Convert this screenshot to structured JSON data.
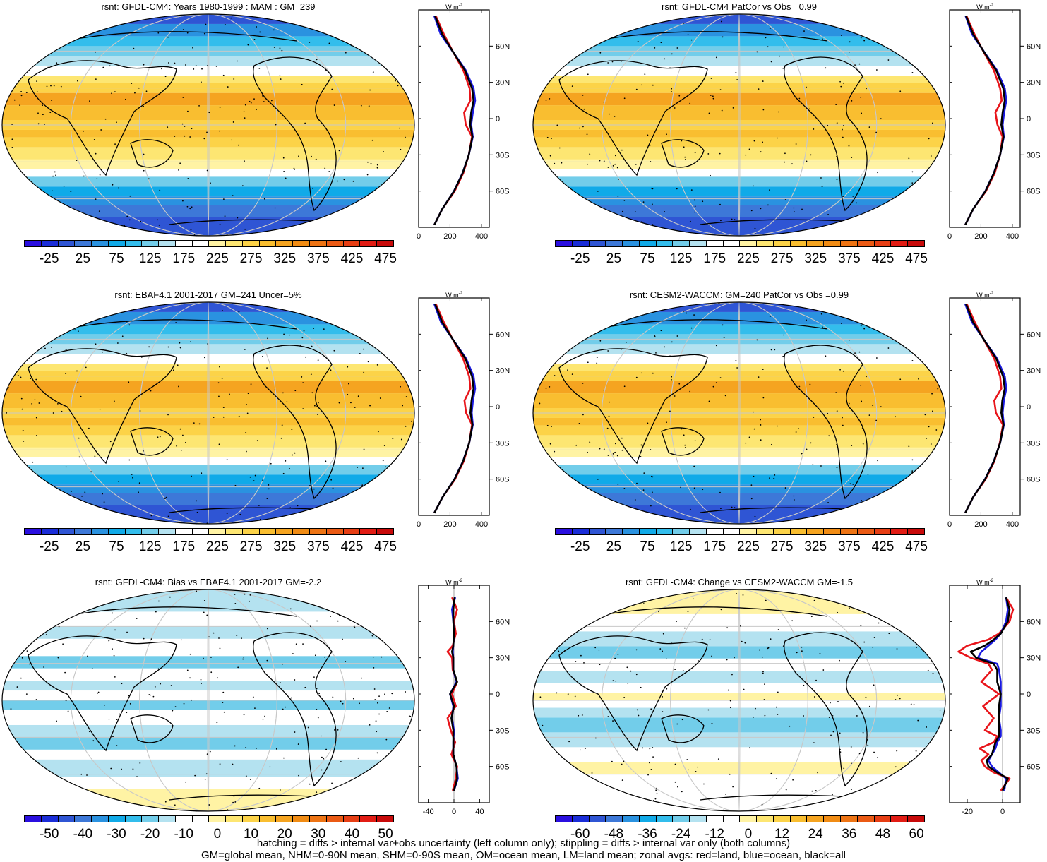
{
  "panels": [
    {
      "id": "p1",
      "title": "rsnt: GFDL-CM4: Years 1980-1999 : MAM : GM=239",
      "kind": "abs",
      "scale": "abs"
    },
    {
      "id": "p2",
      "title": "rsnt: GFDL-CM4 PatCor vs Obs =0.99",
      "kind": "abs",
      "scale": "abs"
    },
    {
      "id": "p3",
      "title": "rsnt: EBAF4.1 2001-2017 GM=241 Uncer=5%",
      "kind": "abs",
      "scale": "abs"
    },
    {
      "id": "p4",
      "title": "rsnt: CESM2-WACCM: GM=240 PatCor vs Obs =0.99",
      "kind": "abs",
      "scale": "abs"
    },
    {
      "id": "p5",
      "title": "rsnt: GFDL-CM4: Bias vs EBAF4.1 2001-2017 GM=-2.2",
      "kind": "bias",
      "scale": "bias"
    },
    {
      "id": "p6",
      "title": "rsnt: GFDL-CM4: Change vs CESM2-WACCM GM=-1.5",
      "kind": "change",
      "scale": "change"
    }
  ],
  "units_label": "W m",
  "units_exp": "-2",
  "lat_labels": [
    "60N",
    "30N",
    "0",
    "30S",
    "60S"
  ],
  "colorbars": {
    "abs": {
      "labels": [
        "-25",
        "25",
        "75",
        "125",
        "175",
        "225",
        "275",
        "325",
        "375",
        "425",
        "475"
      ],
      "colors": [
        "#2a0fe0",
        "#1a2dd8",
        "#2f55d4",
        "#3d78d8",
        "#2a92e0",
        "#10aae8",
        "#33bdec",
        "#72cdea",
        "#b4e2f0",
        "#ffffff",
        "#ffffff",
        "#fff3a4",
        "#fde672",
        "#fcd348",
        "#f9be30",
        "#f5a420",
        "#f18c14",
        "#ee7414",
        "#eb5a14",
        "#e73e14",
        "#e21c14",
        "#c80a0a"
      ]
    },
    "bias": {
      "labels": [
        "-50",
        "-40",
        "-30",
        "-20",
        "-10",
        "0",
        "10",
        "20",
        "30",
        "40",
        "50"
      ],
      "colors": [
        "#2a0fe0",
        "#1a2dd8",
        "#2f55d4",
        "#3d78d8",
        "#2a92e0",
        "#10aae8",
        "#33bdec",
        "#72cdea",
        "#b4e2f0",
        "#ffffff",
        "#ffffff",
        "#fff3a4",
        "#fde672",
        "#fcd348",
        "#f9be30",
        "#f5a420",
        "#f18c14",
        "#ee7414",
        "#eb5a14",
        "#e73e14",
        "#e21c14",
        "#c80a0a"
      ]
    },
    "change": {
      "labels": [
        "-60",
        "-48",
        "-36",
        "-24",
        "-12",
        "0",
        "12",
        "24",
        "36",
        "48",
        "60"
      ],
      "colors": [
        "#2a0fe0",
        "#1a2dd8",
        "#2f55d4",
        "#3d78d8",
        "#2a92e0",
        "#10aae8",
        "#33bdec",
        "#72cdea",
        "#b4e2f0",
        "#ffffff",
        "#ffffff",
        "#fff3a4",
        "#fde672",
        "#fcd348",
        "#f9be30",
        "#f5a420",
        "#f18c14",
        "#ee7414",
        "#eb5a14",
        "#e73e14",
        "#e21c14",
        "#c80a0a"
      ]
    }
  },
  "footer": {
    "line1": "hatching = diffs > internal var+obs uncertainty (left column only); stippling = diffs > internal var only (both columns)",
    "line2": "GM=global mean, NHM=0-90N mean, SHM=0-90S mean, OM=ocean mean, LM=land mean; zonal avgs: red=land, blue=ocean, black=all"
  },
  "chart_data": [
    {
      "type": "line",
      "title": "rsnt: GFDL-CM4: Years 1980-1999 : MAM : GM=239",
      "xlabel": "W m-2",
      "xlim": [
        0,
        450
      ],
      "xticks": [
        "0",
        "200",
        "400"
      ],
      "ylim": [
        -90,
        90
      ],
      "series": [
        {
          "name": "land",
          "color": "#e8141a",
          "lat": [
            -88,
            -75,
            -60,
            -45,
            -30,
            -15,
            -5,
            5,
            15,
            25,
            40,
            55,
            70,
            85
          ],
          "values": [
            100,
            150,
            230,
            285,
            320,
            340,
            300,
            290,
            330,
            325,
            285,
            220,
            160,
            110
          ]
        },
        {
          "name": "ocean",
          "color": "#1a1ae0",
          "lat": [
            -88,
            -75,
            -60,
            -45,
            -30,
            -15,
            -5,
            5,
            15,
            25,
            40,
            55,
            70,
            85
          ],
          "values": [
            100,
            150,
            225,
            280,
            320,
            345,
            335,
            345,
            360,
            350,
            300,
            220,
            140,
            100
          ]
        },
        {
          "name": "all",
          "color": "#000000",
          "lat": [
            -88,
            -75,
            -60,
            -45,
            -30,
            -15,
            -5,
            5,
            15,
            25,
            40,
            55,
            70,
            85
          ],
          "values": [
            100,
            150,
            226,
            281,
            320,
            343,
            328,
            335,
            350,
            340,
            295,
            220,
            150,
            105
          ]
        }
      ]
    },
    {
      "type": "line",
      "title": "rsnt: GFDL-CM4 PatCor vs Obs =0.99",
      "xlabel": "W m-2",
      "xlim": [
        0,
        450
      ],
      "xticks": [
        "0",
        "200",
        "400"
      ],
      "ylim": [
        -90,
        90
      ],
      "series": [
        {
          "name": "land",
          "color": "#e8141a",
          "lat": [
            -88,
            -75,
            -60,
            -45,
            -30,
            -15,
            -5,
            5,
            15,
            25,
            40,
            55,
            70,
            85
          ],
          "values": [
            100,
            150,
            232,
            288,
            322,
            338,
            305,
            292,
            332,
            322,
            282,
            218,
            158,
            108
          ]
        },
        {
          "name": "ocean",
          "color": "#1a1ae0",
          "lat": [
            -88,
            -75,
            -60,
            -45,
            -30,
            -15,
            -5,
            5,
            15,
            25,
            40,
            55,
            70,
            85
          ],
          "values": [
            100,
            150,
            228,
            282,
            322,
            346,
            338,
            348,
            362,
            352,
            302,
            222,
            142,
            102
          ]
        },
        {
          "name": "all",
          "color": "#000000",
          "lat": [
            -88,
            -75,
            -60,
            -45,
            -30,
            -15,
            -5,
            5,
            15,
            25,
            40,
            55,
            70,
            85
          ],
          "values": [
            100,
            150,
            229,
            283,
            322,
            344,
            330,
            338,
            352,
            342,
            297,
            220,
            150,
            105
          ]
        }
      ]
    },
    {
      "type": "line",
      "title": "rsnt: EBAF4.1 2001-2017 GM=241 Uncer=5%",
      "xlabel": "W m-2",
      "xlim": [
        0,
        450
      ],
      "xticks": [
        "0",
        "200",
        "400"
      ],
      "ylim": [
        -90,
        90
      ],
      "series": [
        {
          "name": "land",
          "color": "#e8141a",
          "lat": [
            -88,
            -75,
            -60,
            -45,
            -30,
            -15,
            -5,
            5,
            15,
            25,
            40,
            55,
            70,
            85
          ],
          "values": [
            100,
            152,
            232,
            288,
            322,
            340,
            302,
            292,
            330,
            322,
            283,
            220,
            160,
            110
          ]
        },
        {
          "name": "ocean",
          "color": "#1a1ae0",
          "lat": [
            -88,
            -75,
            -60,
            -45,
            -30,
            -15,
            -5,
            5,
            15,
            25,
            40,
            55,
            70,
            85
          ],
          "values": [
            100,
            152,
            228,
            283,
            322,
            345,
            338,
            346,
            360,
            350,
            302,
            222,
            142,
            100
          ]
        },
        {
          "name": "all",
          "color": "#000000",
          "lat": [
            -88,
            -75,
            -60,
            -45,
            -30,
            -15,
            -5,
            5,
            15,
            25,
            40,
            55,
            70,
            85
          ],
          "values": [
            100,
            152,
            229,
            284,
            322,
            343,
            330,
            337,
            350,
            340,
            297,
            221,
            150,
            105
          ]
        }
      ]
    },
    {
      "type": "line",
      "title": "rsnt: CESM2-WACCM: GM=240 PatCor vs Obs =0.99",
      "xlabel": "W m-2",
      "xlim": [
        0,
        450
      ],
      "xticks": [
        "0",
        "200",
        "400"
      ],
      "ylim": [
        -90,
        90
      ],
      "series": [
        {
          "name": "land",
          "color": "#e8141a",
          "lat": [
            -88,
            -75,
            -60,
            -45,
            -30,
            -15,
            -5,
            5,
            15,
            25,
            40,
            55,
            70,
            85
          ],
          "values": [
            100,
            150,
            230,
            286,
            320,
            340,
            295,
            285,
            330,
            322,
            284,
            220,
            160,
            110
          ]
        },
        {
          "name": "ocean",
          "color": "#1a1ae0",
          "lat": [
            -88,
            -75,
            -60,
            -45,
            -30,
            -15,
            -5,
            5,
            15,
            25,
            40,
            55,
            70,
            85
          ],
          "values": [
            100,
            150,
            226,
            282,
            322,
            346,
            338,
            346,
            362,
            352,
            302,
            222,
            142,
            100
          ]
        },
        {
          "name": "all",
          "color": "#000000",
          "lat": [
            -88,
            -75,
            -60,
            -45,
            -30,
            -15,
            -5,
            5,
            15,
            25,
            40,
            55,
            70,
            85
          ],
          "values": [
            100,
            150,
            227,
            283,
            322,
            344,
            330,
            336,
            352,
            341,
            297,
            221,
            150,
            105
          ]
        }
      ]
    },
    {
      "type": "line",
      "title": "rsnt: GFDL-CM4: Bias vs EBAF4.1 2001-2017 GM=-2.2",
      "xlabel": "W m-2",
      "xlim": [
        -55,
        55
      ],
      "xticks": [
        "-40",
        "0",
        "40"
      ],
      "ylim": [
        -90,
        90
      ],
      "series": [
        {
          "name": "land",
          "color": "#e8141a",
          "lat": [
            -80,
            -70,
            -60,
            -50,
            -40,
            -30,
            -20,
            -10,
            0,
            10,
            20,
            30,
            35,
            40,
            50,
            60,
            70,
            80
          ],
          "values": [
            -2,
            3,
            5,
            -4,
            2,
            -5,
            -10,
            3,
            -3,
            5,
            -2,
            -3,
            -10,
            -2,
            3,
            0,
            5,
            -3
          ]
        },
        {
          "name": "ocean",
          "color": "#1a1ae0",
          "lat": [
            -80,
            -70,
            -60,
            -50,
            -40,
            -30,
            -20,
            -10,
            0,
            10,
            20,
            30,
            35,
            40,
            50,
            60,
            70,
            80
          ],
          "values": [
            0,
            6,
            4,
            -1,
            -1,
            0,
            -3,
            -1,
            -6,
            4,
            -1,
            -1,
            -2,
            -1,
            0,
            -1,
            -3,
            2
          ]
        },
        {
          "name": "all",
          "color": "#000000",
          "lat": [
            -80,
            -70,
            -60,
            -50,
            -40,
            -30,
            -20,
            -10,
            0,
            10,
            20,
            30,
            35,
            40,
            50,
            60,
            70,
            80
          ],
          "values": [
            0,
            5,
            4,
            -1,
            -1,
            -1,
            -4,
            0,
            -6,
            5,
            -1,
            -1,
            -3,
            -1,
            0,
            -1,
            -1,
            1
          ]
        }
      ]
    },
    {
      "type": "line",
      "title": "rsnt: GFDL-CM4: Change vs CESM2-WACCM GM=-1.5",
      "xlabel": "W m-2",
      "xlim": [
        -30,
        10
      ],
      "xticks": [
        "-20",
        "0"
      ],
      "ylim": [
        -90,
        90
      ],
      "series": [
        {
          "name": "land",
          "color": "#e8141a",
          "lat": [
            -80,
            -70,
            -65,
            -60,
            -55,
            -50,
            -45,
            -40,
            -35,
            -30,
            -20,
            -10,
            0,
            10,
            20,
            25,
            30,
            35,
            40,
            45,
            50,
            60,
            70,
            80
          ],
          "values": [
            -1,
            4,
            -5,
            -10,
            -12,
            -8,
            -13,
            -5,
            -3,
            -10,
            -5,
            -11,
            -2,
            -12,
            -6,
            -8,
            -18,
            -25,
            -20,
            -8,
            -2,
            4,
            6,
            2
          ]
        },
        {
          "name": "ocean",
          "color": "#1a1ae0",
          "lat": [
            -80,
            -70,
            -65,
            -60,
            -55,
            -50,
            -45,
            -40,
            -35,
            -30,
            -20,
            -10,
            0,
            10,
            20,
            25,
            30,
            35,
            40,
            45,
            50,
            60,
            70,
            80
          ],
          "values": [
            1,
            2,
            -2,
            -6,
            -8,
            -6,
            -4,
            -3,
            -1,
            -1,
            -2,
            -1,
            -1,
            -1,
            -2,
            -3,
            -14,
            -12,
            -8,
            -4,
            -1,
            2,
            3,
            2
          ]
        },
        {
          "name": "all",
          "color": "#000000",
          "lat": [
            -80,
            -70,
            -65,
            -60,
            -55,
            -50,
            -45,
            -40,
            -35,
            -30,
            -20,
            -10,
            0,
            10,
            20,
            25,
            30,
            35,
            40,
            45,
            50,
            60,
            70,
            80
          ],
          "values": [
            0,
            3,
            -3,
            -8,
            -9,
            -6,
            -5,
            -4,
            -2,
            -2,
            -2,
            -2,
            -1,
            -3,
            -3,
            -5,
            -15,
            -18,
            -10,
            -5,
            -1,
            3,
            4,
            2
          ]
        }
      ]
    }
  ]
}
